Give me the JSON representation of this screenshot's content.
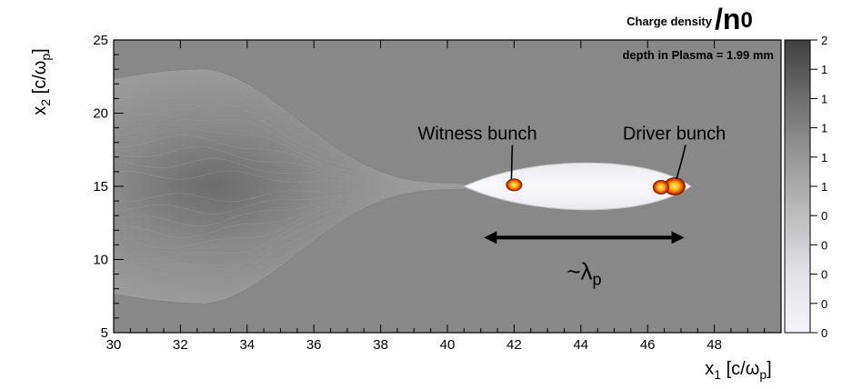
{
  "chart_data": {
    "type": "heatmap",
    "title": "Charge density",
    "title_suffix": "/n",
    "title_suffix_sub": "0",
    "subtitle": "depth in Plasma =  1.99 mm",
    "xlabel": "x",
    "xlabel_sub": "1",
    "xlabel_unit": " [c/ω",
    "xlabel_unit_sub": "p",
    "xlabel_close": "]",
    "ylabel": "x",
    "ylabel_sub": "2",
    "ylabel_unit": " [c/ω",
    "ylabel_unit_sub": "p",
    "ylabel_close": "]",
    "xlim": [
      30,
      50
    ],
    "ylim": [
      5,
      25
    ],
    "xticks": [
      "30",
      "32",
      "34",
      "36",
      "38",
      "40",
      "42",
      "44",
      "46",
      "48"
    ],
    "yticks": [
      "5",
      "10",
      "15",
      "20",
      "25"
    ],
    "colorbar": {
      "labels": [
        "2",
        "1",
        "1",
        "1",
        "1",
        "1",
        "0",
        "0",
        "0",
        "0",
        "0"
      ],
      "range": [
        0,
        2
      ],
      "colors": [
        "#f2f2f8",
        "#e2e2e8",
        "#bdbdbd",
        "#979797",
        "#6e6e6e",
        "#404040"
      ]
    },
    "background_level": 1.0,
    "features": {
      "bubble": {
        "x_start": 40.5,
        "x_end": 47.3,
        "y_center": 15,
        "half_height": 1.5
      },
      "sheath": {
        "x_start": 30,
        "x_end": 40.5,
        "max_half_height": 8
      },
      "witness_bunch": {
        "label": "Witness bunch",
        "x": 42,
        "y": 15.1,
        "label_x": 40.9,
        "label_y": 18.2
      },
      "driver_bunch": {
        "label": "Driver bunch",
        "x": 46.7,
        "y": 15,
        "label_x": 46.8,
        "label_y": 18.2
      },
      "wavelength_arrow": {
        "label": "~λ",
        "label_sub": "p",
        "x_start": 41.1,
        "x_end": 47.1,
        "y": 11.5
      }
    }
  }
}
